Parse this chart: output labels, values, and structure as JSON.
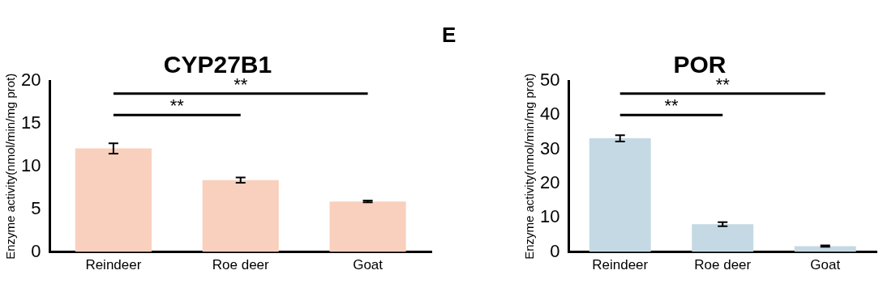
{
  "chart_data": [
    {
      "type": "bar",
      "title": "CYP27B1",
      "ylabel": "Enzyme activity(nmol/min/mg prot)",
      "categories": [
        "Reindeer",
        "Roe deer",
        "Goat"
      ],
      "values": [
        12.1,
        8.4,
        5.9
      ],
      "errors": [
        0.6,
        0.3,
        0.1
      ],
      "color": "#f9d0bd",
      "ylim": [
        0,
        20
      ],
      "yticks": [
        0,
        5,
        10,
        15,
        20
      ],
      "grid": false,
      "legend": false,
      "annotations": [
        "**",
        "**"
      ]
    },
    {
      "type": "bar",
      "title": "POR",
      "ylabel": "Enzyme activity(nmol/min/mg prot)",
      "categories": [
        "Reindeer",
        "Roe deer",
        "Goat"
      ],
      "values": [
        33.2,
        8.1,
        1.7
      ],
      "errors": [
        0.9,
        0.6,
        0.2
      ],
      "color": "#c4d9e3",
      "ylim": [
        0,
        50
      ],
      "yticks": [
        0,
        10,
        20,
        30,
        40,
        50
      ],
      "grid": false,
      "legend": false,
      "annotations": [
        {
          "text": "E"
        },
        "**",
        "**"
      ]
    }
  ]
}
